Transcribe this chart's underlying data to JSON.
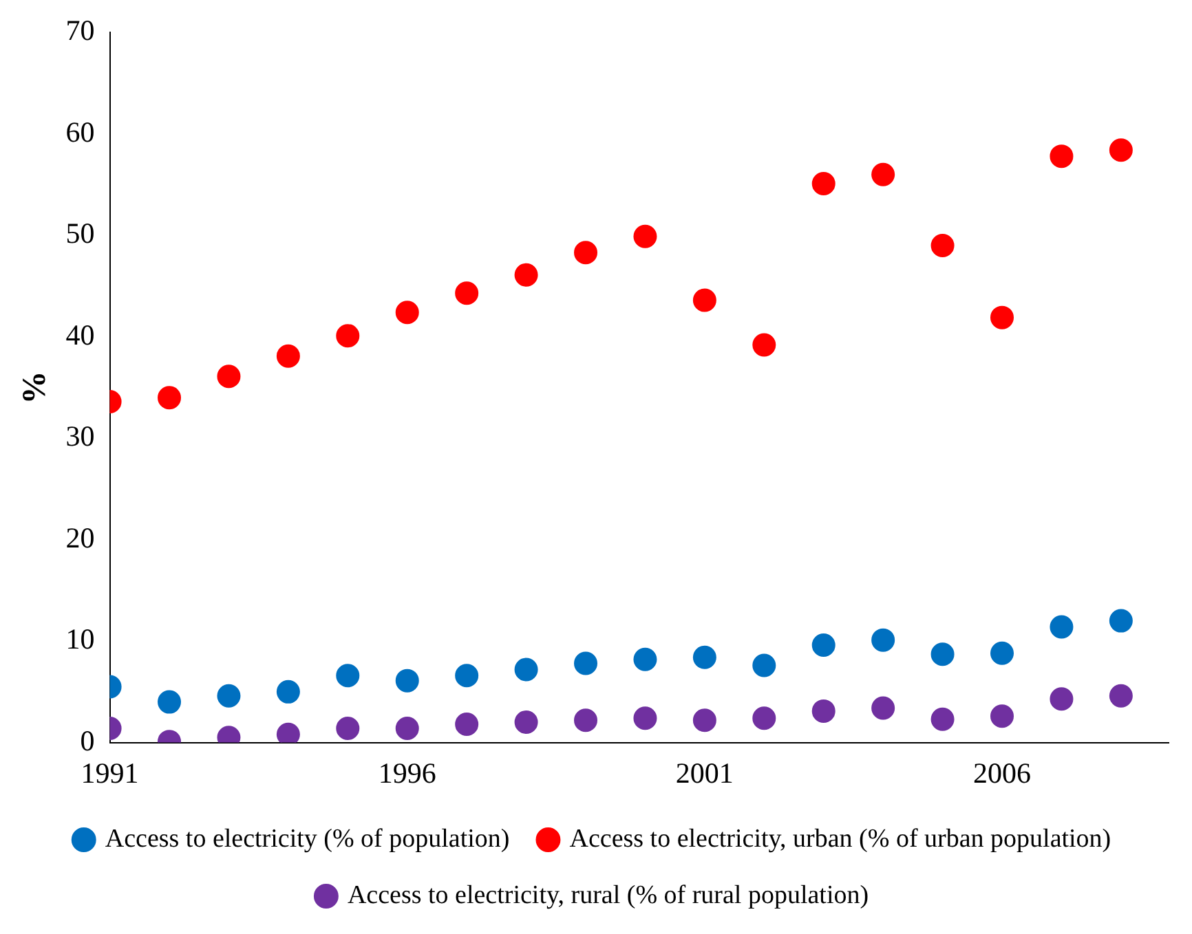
{
  "chart_data": {
    "type": "scatter",
    "ylabel": "%",
    "x": [
      1991,
      1992,
      1993,
      1994,
      1995,
      1996,
      1997,
      1998,
      1999,
      2000,
      2001,
      2002,
      2003,
      2004,
      2005,
      2006,
      2007,
      2008
    ],
    "xlim": [
      1991,
      2008.8
    ],
    "xticks": [
      1991,
      1996,
      2001,
      2006
    ],
    "ylim": [
      0,
      70
    ],
    "yticks": [
      0,
      10,
      20,
      30,
      40,
      50,
      60,
      70
    ],
    "grid": false,
    "legend": "bottom",
    "marker": "circle",
    "series": [
      {
        "name": "Access to electricity (% of population)",
        "color": "#0070c0",
        "values": [
          5.5,
          4.0,
          4.6,
          5.0,
          6.6,
          6.1,
          6.6,
          7.2,
          7.8,
          8.2,
          8.4,
          7.6,
          9.6,
          10.1,
          8.7,
          8.8,
          11.4,
          12.0
        ]
      },
      {
        "name": "Access to electricity, urban (% of urban population)",
        "color": "#ff0000",
        "values": [
          33.6,
          34.0,
          36.1,
          38.1,
          40.1,
          42.4,
          44.3,
          46.1,
          48.3,
          49.9,
          43.6,
          39.2,
          55.1,
          56.0,
          49.0,
          41.9,
          57.8,
          58.4
        ]
      },
      {
        "name": "Access to electricity, rural (% of rural population)",
        "color": "#7030a0",
        "values": [
          1.4,
          0.1,
          0.5,
          0.8,
          1.4,
          1.4,
          1.8,
          2.0,
          2.2,
          2.4,
          2.2,
          2.4,
          3.1,
          3.4,
          2.3,
          2.6,
          4.3,
          4.6
        ]
      }
    ]
  }
}
